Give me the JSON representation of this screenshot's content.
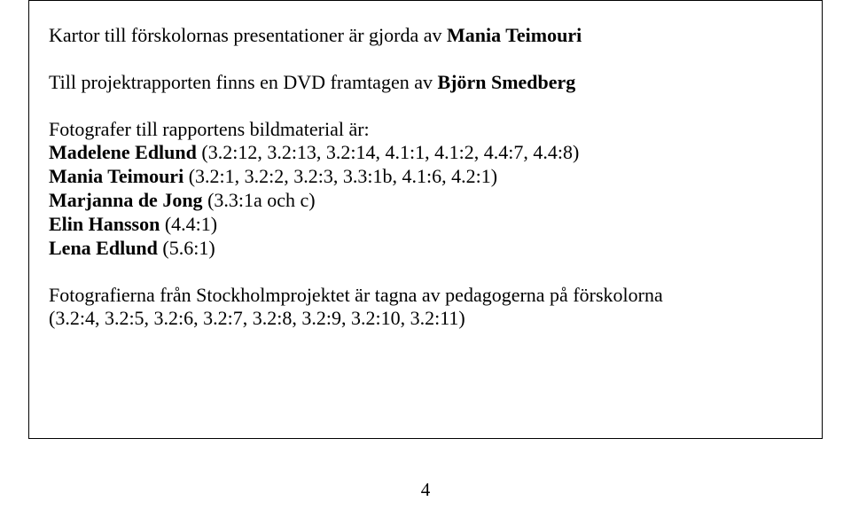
{
  "intro": {
    "prefix": "Kartor till förskolornas presentationer är gjorda av ",
    "author": "Mania Teimouri"
  },
  "dvd": {
    "prefix": "Till projektrapporten finns en DVD framtagen av ",
    "author": "Björn Smedberg"
  },
  "photographers": {
    "lead": "Fotografer till rapportens bildmaterial är:",
    "items": [
      {
        "name": "Madelene Edlund",
        "refs": " (3.2:12, 3.2:13, 3.2:14, 4.1:1, 4.1:2, 4.4:7, 4.4:8)"
      },
      {
        "name": "Mania Teimouri",
        "refs": " (3.2:1, 3.2:2, 3.2:3, 3.3:1b, 4.1:6, 4.2:1)"
      },
      {
        "name": "Marjanna de Jong",
        "refs": " (3.3:1a och c)"
      },
      {
        "name": "Elin Hansson",
        "refs": " (4.4:1)"
      },
      {
        "name": "Lena Edlund",
        "refs": " (5.6:1)"
      }
    ]
  },
  "stockholm": {
    "line1": "Fotografierna från Stockholmprojektet är tagna av pedagogerna på förskolorna",
    "line2": "(3.2:4, 3.2:5, 3.2:6, 3.2:7, 3.2:8, 3.2:9, 3.2:10, 3.2:11)"
  },
  "page_number": "4"
}
